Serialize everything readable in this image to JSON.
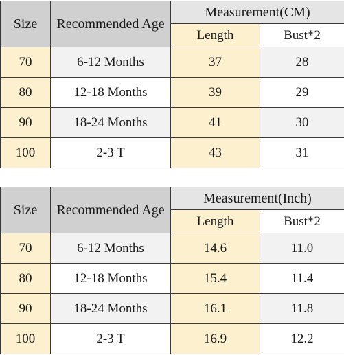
{
  "tables": [
    {
      "headers": {
        "size": "Size",
        "age": "Recommended Age",
        "measurement": "Measurement(CM)",
        "length": "Length",
        "bust": "Bust*2"
      },
      "rows": [
        {
          "size": "70",
          "age": "6-12 Months",
          "length": "37",
          "bust": "28"
        },
        {
          "size": "80",
          "age": "12-18 Months",
          "length": "39",
          "bust": "29"
        },
        {
          "size": "90",
          "age": "18-24 Months",
          "length": "41",
          "bust": "30"
        },
        {
          "size": "100",
          "age": "2-3 T",
          "length": "43",
          "bust": "31"
        }
      ]
    },
    {
      "headers": {
        "size": "Size",
        "age": "Recommended Age",
        "measurement": "Measurement(Inch)",
        "length": "Length",
        "bust": "Bust*2"
      },
      "rows": [
        {
          "size": "70",
          "age": "6-12 Months",
          "length": "14.6",
          "bust": "11.0"
        },
        {
          "size": "80",
          "age": "12-18 Months",
          "length": "15.4",
          "bust": "11.4"
        },
        {
          "size": "90",
          "age": "18-24 Months",
          "length": "16.1",
          "bust": "11.8"
        },
        {
          "size": "100",
          "age": "2-3 T",
          "length": "16.9",
          "bust": "12.2"
        }
      ]
    }
  ]
}
